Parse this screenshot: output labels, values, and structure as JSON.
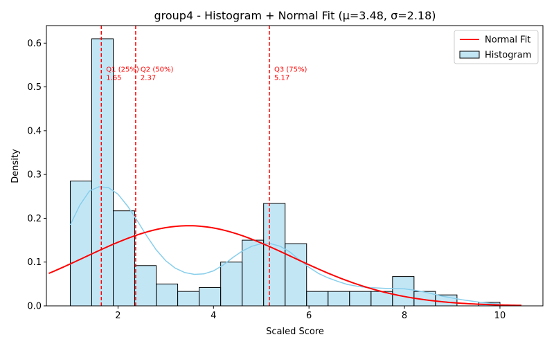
{
  "chart_data": {
    "type": "histogram",
    "title": "group4 - Histogram + Normal Fit (μ=3.48, σ=2.18)",
    "xlabel": "Scaled Score",
    "ylabel": "Density",
    "xlim": [
      0.5,
      10.9
    ],
    "ylim": [
      0,
      0.64
    ],
    "x_ticks": [
      2,
      4,
      6,
      8,
      10
    ],
    "x_tick_labels": [
      "2",
      "4",
      "6",
      "8",
      "10"
    ],
    "y_ticks": [
      0,
      0.1,
      0.2,
      0.3,
      0.4,
      0.5,
      0.6
    ],
    "y_tick_labels": [
      "0.0",
      "0.1",
      "0.2",
      "0.3",
      "0.4",
      "0.5",
      "0.6"
    ],
    "grid": false,
    "legend_position": "top-right",
    "bins": [
      {
        "x0": 1.0,
        "x1": 1.45,
        "density": 0.285
      },
      {
        "x0": 1.45,
        "x1": 1.9,
        "density": 0.61
      },
      {
        "x0": 1.9,
        "x1": 2.35,
        "density": 0.217
      },
      {
        "x0": 2.35,
        "x1": 2.8,
        "density": 0.092
      },
      {
        "x0": 2.8,
        "x1": 3.25,
        "density": 0.05
      },
      {
        "x0": 3.25,
        "x1": 3.7,
        "density": 0.033
      },
      {
        "x0": 3.7,
        "x1": 4.15,
        "density": 0.042
      },
      {
        "x0": 4.15,
        "x1": 4.6,
        "density": 0.1
      },
      {
        "x0": 4.6,
        "x1": 5.05,
        "density": 0.15
      },
      {
        "x0": 5.05,
        "x1": 5.5,
        "density": 0.234
      },
      {
        "x0": 5.5,
        "x1": 5.95,
        "density": 0.142
      },
      {
        "x0": 5.95,
        "x1": 6.4,
        "density": 0.033
      },
      {
        "x0": 6.4,
        "x1": 6.85,
        "density": 0.033
      },
      {
        "x0": 6.85,
        "x1": 7.3,
        "density": 0.033
      },
      {
        "x0": 7.3,
        "x1": 7.75,
        "density": 0.033
      },
      {
        "x0": 7.75,
        "x1": 8.2,
        "density": 0.067
      },
      {
        "x0": 8.2,
        "x1": 8.65,
        "density": 0.033
      },
      {
        "x0": 8.65,
        "x1": 9.1,
        "density": 0.025
      },
      {
        "x0": 9.1,
        "x1": 9.55,
        "density": 0.0
      },
      {
        "x0": 9.55,
        "x1": 10.0,
        "density": 0.008
      }
    ],
    "normal_fit": {
      "name": "Normal Fit",
      "mu": 3.48,
      "sigma": 2.18,
      "x_range": [
        0.55,
        10.45
      ],
      "color": "#ff0000"
    },
    "kde": {
      "color": "#87ceeb",
      "points": [
        [
          1.0,
          0.185
        ],
        [
          1.2,
          0.23
        ],
        [
          1.4,
          0.262
        ],
        [
          1.6,
          0.272
        ],
        [
          1.8,
          0.27
        ],
        [
          2.0,
          0.255
        ],
        [
          2.2,
          0.228
        ],
        [
          2.4,
          0.195
        ],
        [
          2.6,
          0.16
        ],
        [
          2.8,
          0.128
        ],
        [
          3.0,
          0.103
        ],
        [
          3.2,
          0.086
        ],
        [
          3.4,
          0.076
        ],
        [
          3.6,
          0.072
        ],
        [
          3.8,
          0.073
        ],
        [
          4.0,
          0.08
        ],
        [
          4.2,
          0.093
        ],
        [
          4.4,
          0.11
        ],
        [
          4.6,
          0.125
        ],
        [
          4.8,
          0.136
        ],
        [
          5.0,
          0.142
        ],
        [
          5.2,
          0.142
        ],
        [
          5.4,
          0.136
        ],
        [
          5.6,
          0.123
        ],
        [
          5.8,
          0.105
        ],
        [
          6.0,
          0.088
        ],
        [
          6.2,
          0.074
        ],
        [
          6.4,
          0.064
        ],
        [
          6.6,
          0.056
        ],
        [
          6.8,
          0.049
        ],
        [
          7.0,
          0.045
        ],
        [
          7.2,
          0.042
        ],
        [
          7.4,
          0.041
        ],
        [
          7.6,
          0.04
        ],
        [
          7.8,
          0.04
        ],
        [
          8.0,
          0.039
        ],
        [
          8.2,
          0.036
        ],
        [
          8.4,
          0.032
        ],
        [
          8.6,
          0.027
        ],
        [
          8.8,
          0.022
        ],
        [
          9.0,
          0.018
        ],
        [
          9.2,
          0.014
        ],
        [
          9.4,
          0.011
        ],
        [
          9.6,
          0.008
        ],
        [
          9.8,
          0.006
        ],
        [
          10.0,
          0.004
        ]
      ]
    },
    "quartiles": [
      {
        "x": 1.65,
        "label": "Q1 (25%)",
        "value": "1.65"
      },
      {
        "x": 2.37,
        "label": "Q2 (50%)",
        "value": "2.37"
      },
      {
        "x": 5.17,
        "label": "Q3 (75%)",
        "value": "5.17"
      }
    ],
    "quartile_label_y": 0.53,
    "legend": [
      {
        "label": "Normal Fit",
        "kind": "line",
        "color": "#ff0000"
      },
      {
        "label": "Histogram",
        "kind": "patch",
        "color": "#87ceeb"
      }
    ],
    "colors": {
      "bar_fill": "#87ceeb",
      "bar_edge": "#000000",
      "normal": "#ff0000",
      "quartile": "#ff0000"
    }
  }
}
